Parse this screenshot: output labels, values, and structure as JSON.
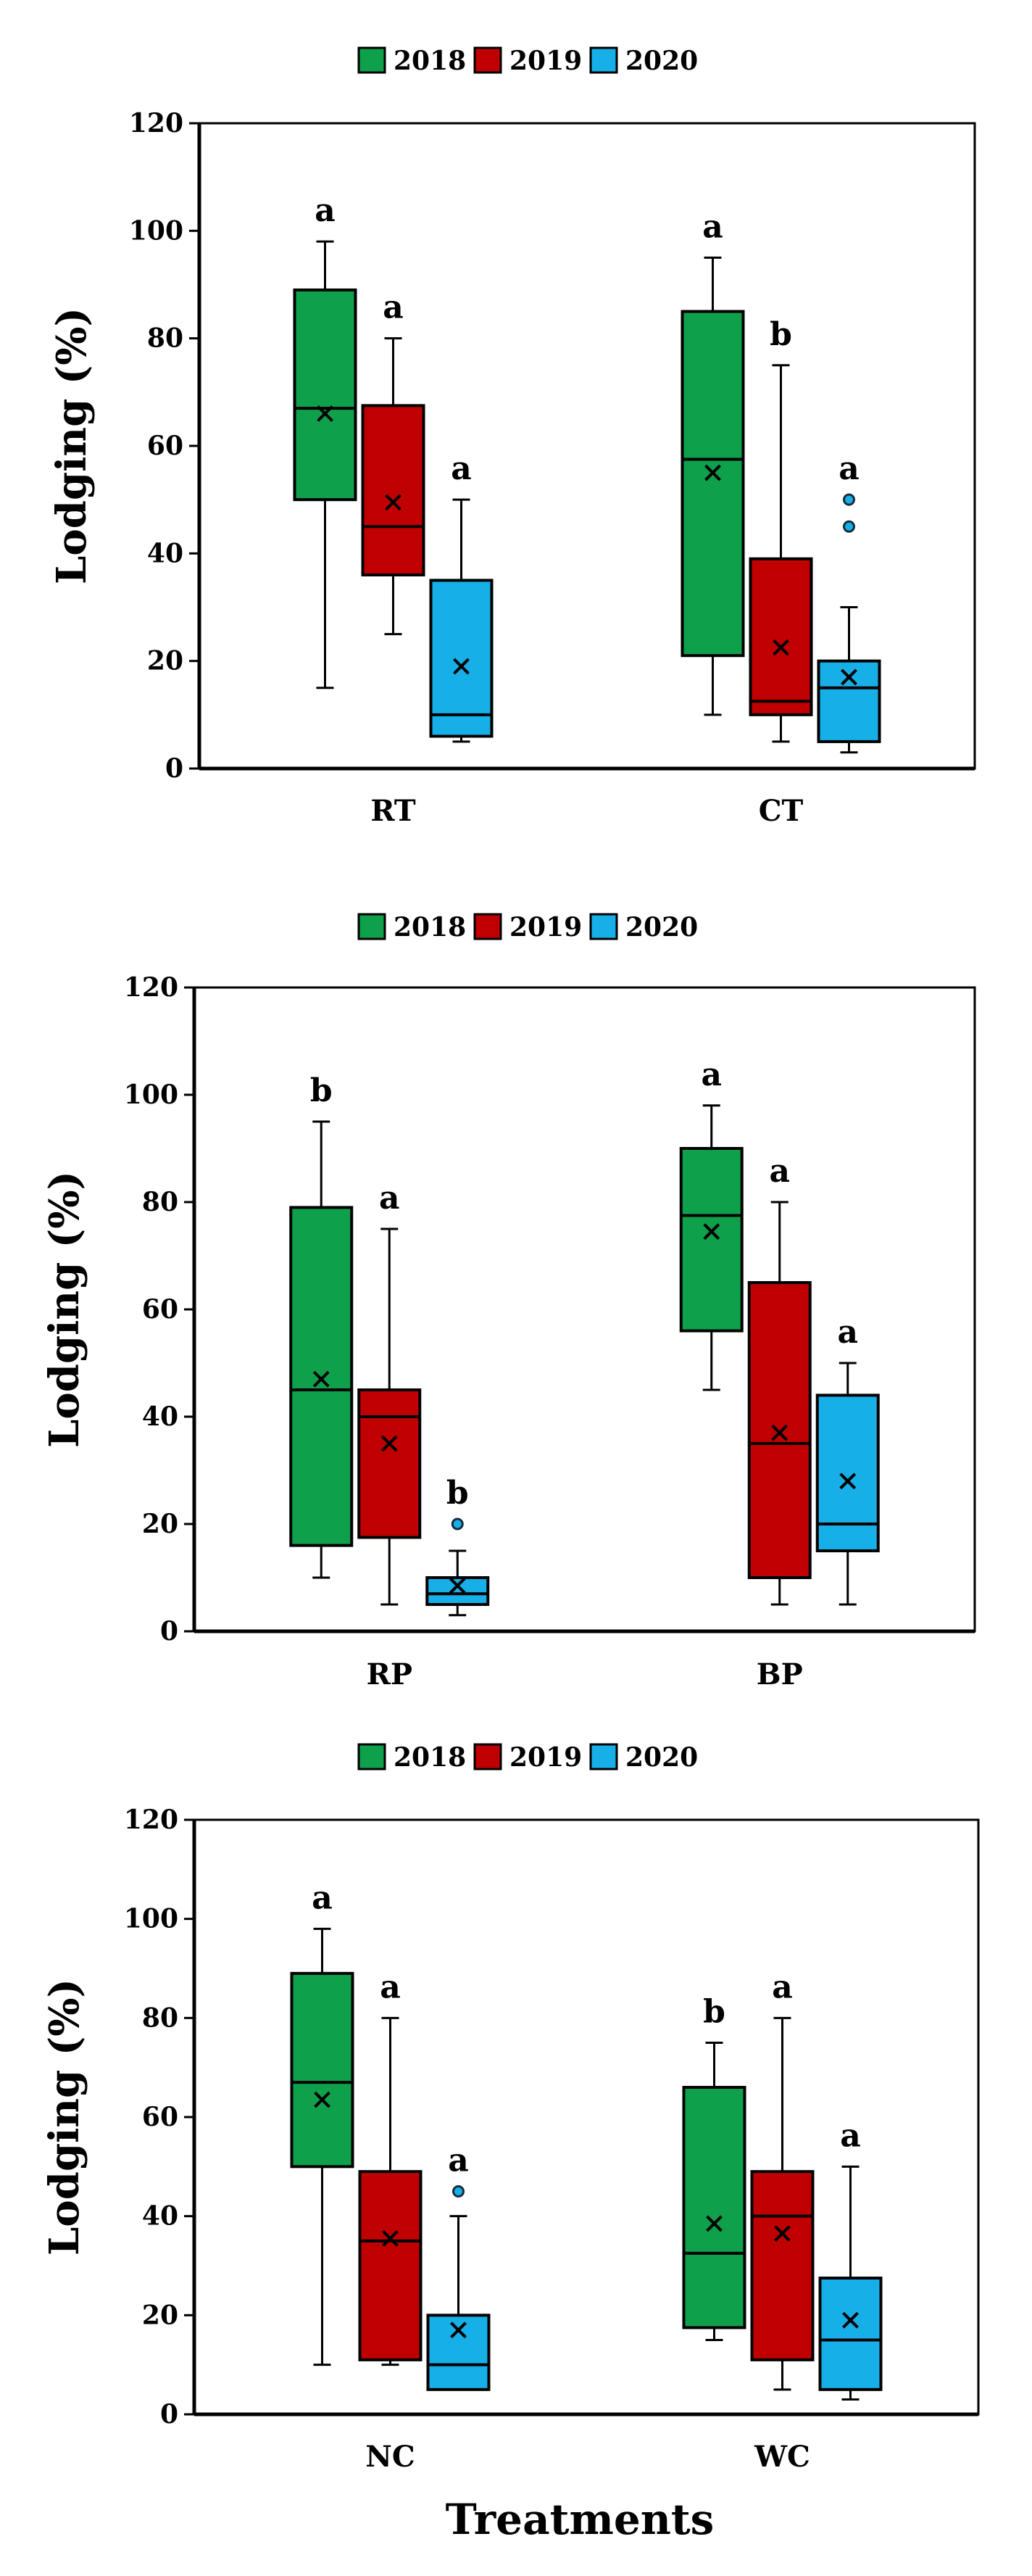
{
  "colors": {
    "2018": "#0fa04b",
    "2019": "#c00000",
    "2020": "#17afe8"
  },
  "legend": {
    "labels": [
      "2018",
      "2019",
      "2020"
    ]
  },
  "x_title": "Treatments",
  "chart_data": [
    {
      "type": "boxplot",
      "title": "",
      "ylabel": "Lodging (%)",
      "ylim": [
        0,
        120
      ],
      "yticks": [
        "0",
        "20",
        "40",
        "60",
        "80",
        "100",
        "120"
      ],
      "categories": [
        "RT",
        "CT"
      ],
      "series_names": [
        "2018",
        "2019",
        "2020"
      ],
      "groups": [
        {
          "category": "RT",
          "boxes": [
            {
              "series": "2018",
              "min": 15,
              "q1": 50,
              "median": 67,
              "q3": 89,
              "max": 98,
              "mean": 66,
              "outliers": [],
              "letter": "a"
            },
            {
              "series": "2019",
              "min": 25,
              "q1": 36,
              "median": 45,
              "q3": 67.5,
              "max": 80,
              "mean": 49.5,
              "outliers": [],
              "letter": "a"
            },
            {
              "series": "2020",
              "min": 5,
              "q1": 6,
              "median": 10,
              "q3": 35,
              "max": 50,
              "mean": 19,
              "outliers": [],
              "letter": "a"
            }
          ]
        },
        {
          "category": "CT",
          "boxes": [
            {
              "series": "2018",
              "min": 10,
              "q1": 21,
              "median": 57.5,
              "q3": 85,
              "max": 95,
              "mean": 55,
              "outliers": [],
              "letter": "a"
            },
            {
              "series": "2019",
              "min": 5,
              "q1": 10,
              "median": 12.5,
              "q3": 39,
              "max": 75,
              "mean": 22.5,
              "outliers": [],
              "letter": "b"
            },
            {
              "series": "2020",
              "min": 3,
              "q1": 5,
              "median": 15,
              "q3": 20,
              "max": 30,
              "mean": 17,
              "outliers": [
                45,
                50
              ],
              "letter": "a"
            }
          ]
        }
      ]
    },
    {
      "type": "boxplot",
      "title": "",
      "ylabel": "Lodging (%)",
      "ylim": [
        0,
        120
      ],
      "yticks": [
        "0",
        "20",
        "40",
        "60",
        "80",
        "100",
        "120"
      ],
      "categories": [
        "RP",
        "BP"
      ],
      "series_names": [
        "2018",
        "2019",
        "2020"
      ],
      "groups": [
        {
          "category": "RP",
          "boxes": [
            {
              "series": "2018",
              "min": 10,
              "q1": 16,
              "median": 45,
              "q3": 79,
              "max": 95,
              "mean": 47,
              "outliers": [],
              "letter": "b"
            },
            {
              "series": "2019",
              "min": 5,
              "q1": 17.5,
              "median": 40,
              "q3": 45,
              "max": 75,
              "mean": 35,
              "outliers": [],
              "letter": "a"
            },
            {
              "series": "2020",
              "min": 3,
              "q1": 5,
              "median": 7,
              "q3": 10,
              "max": 15,
              "mean": 8.5,
              "outliers": [
                20
              ],
              "letter": "b"
            }
          ]
        },
        {
          "category": "BP",
          "boxes": [
            {
              "series": "2018",
              "min": 45,
              "q1": 56,
              "median": 77.5,
              "q3": 90,
              "max": 98,
              "mean": 74.5,
              "outliers": [],
              "letter": "a"
            },
            {
              "series": "2019",
              "min": 5,
              "q1": 10,
              "median": 35,
              "q3": 65,
              "max": 80,
              "mean": 37,
              "outliers": [],
              "letter": "a"
            },
            {
              "series": "2020",
              "min": 5,
              "q1": 15,
              "median": 20,
              "q3": 44,
              "max": 50,
              "mean": 28,
              "outliers": [],
              "letter": "a"
            }
          ]
        }
      ]
    },
    {
      "type": "boxplot",
      "title": "",
      "ylabel": "Lodging (%)",
      "ylim": [
        0,
        120
      ],
      "yticks": [
        "0",
        "20",
        "40",
        "60",
        "80",
        "100",
        "120"
      ],
      "categories": [
        "NC",
        "WC"
      ],
      "series_names": [
        "2018",
        "2019",
        "2020"
      ],
      "groups": [
        {
          "category": "NC",
          "boxes": [
            {
              "series": "2018",
              "min": 10,
              "q1": 50,
              "median": 67,
              "q3": 89,
              "max": 98,
              "mean": 63.5,
              "outliers": [],
              "letter": "a"
            },
            {
              "series": "2019",
              "min": 10,
              "q1": 11,
              "median": 35,
              "q3": 49,
              "max": 80,
              "mean": 35.5,
              "outliers": [],
              "letter": "a"
            },
            {
              "series": "2020",
              "min": 5,
              "q1": 5,
              "median": 10,
              "q3": 20,
              "max": 40,
              "mean": 17,
              "outliers": [
                45
              ],
              "letter": "a"
            }
          ]
        },
        {
          "category": "WC",
          "boxes": [
            {
              "series": "2018",
              "min": 15,
              "q1": 17.5,
              "median": 32.5,
              "q3": 66,
              "max": 75,
              "mean": 38.5,
              "outliers": [],
              "letter": "b"
            },
            {
              "series": "2019",
              "min": 5,
              "q1": 11,
              "median": 40,
              "q3": 49,
              "max": 80,
              "mean": 36.5,
              "outliers": [],
              "letter": "a"
            },
            {
              "series": "2020",
              "min": 3,
              "q1": 5,
              "median": 15,
              "q3": 27.5,
              "max": 50,
              "mean": 19,
              "outliers": [],
              "letter": "a"
            }
          ]
        }
      ]
    }
  ]
}
